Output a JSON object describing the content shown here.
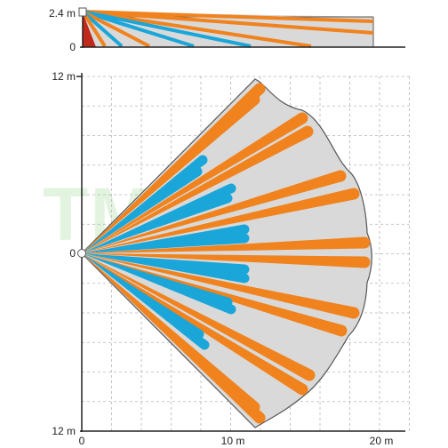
{
  "side_view": {
    "height_label": "2.4 m",
    "floor_label": "0"
  },
  "top_view": {
    "y_top_label": "12 m",
    "y_mid_label": "0",
    "y_bottom_label": "12 m",
    "x_labels": [
      "0",
      "10 m",
      "20 m"
    ]
  },
  "watermark": "TME.pl",
  "colors": {
    "long_range_beam": "#f0831e",
    "short_range_beam": "#1ba6d9",
    "coverage_area": "#d9d9d9",
    "creep_zone": "#c0281c"
  }
}
